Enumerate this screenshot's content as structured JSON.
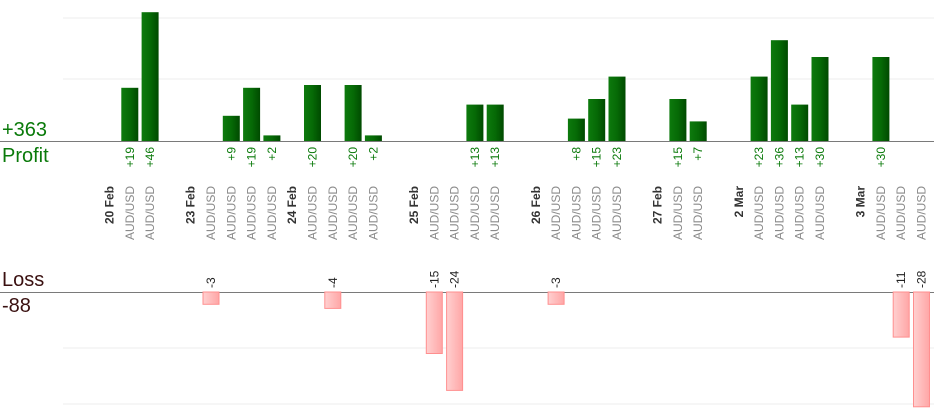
{
  "summary": {
    "profit_total": "+363",
    "profit_label": "Profit",
    "loss_label": "Loss",
    "loss_total": "-88"
  },
  "colors": {
    "profit_bar": "#006400",
    "profit_bar_light": "#108a10",
    "profit_text": "#0a7a0a",
    "loss_bar": "#ffb0b0",
    "loss_bar_edge": "#ff8f8f",
    "loss_label_text": "#3a1010",
    "pair_text": "#8a8a8a",
    "date_text": "#333333"
  },
  "chart_data": {
    "type": "bar",
    "title": "",
    "profit_axis": {
      "ylim": [
        0,
        46
      ],
      "grid": true
    },
    "loss_axis": {
      "ylim": [
        -28,
        0
      ],
      "grid": true
    },
    "columns": [
      {
        "kind": "date",
        "text": "20 Feb"
      },
      {
        "kind": "trade",
        "pair": "AUD/USD",
        "value": 19,
        "label": "+19"
      },
      {
        "kind": "trade",
        "pair": "AUD/USD",
        "value": 46,
        "label": "+46"
      },
      {
        "kind": "gap"
      },
      {
        "kind": "date",
        "text": "23 Feb"
      },
      {
        "kind": "trade",
        "pair": "AUD/USD",
        "value": -3,
        "label": "-3"
      },
      {
        "kind": "trade",
        "pair": "AUD/USD",
        "value": 9,
        "label": "+9"
      },
      {
        "kind": "trade",
        "pair": "AUD/USD",
        "value": 19,
        "label": "+19"
      },
      {
        "kind": "trade",
        "pair": "AUD/USD",
        "value": 2,
        "label": "+2"
      },
      {
        "kind": "date",
        "text": "24 Feb"
      },
      {
        "kind": "trade",
        "pair": "AUD/USD",
        "value": 20,
        "label": "+20"
      },
      {
        "kind": "trade",
        "pair": "AUD/USD",
        "value": -4,
        "label": "-4"
      },
      {
        "kind": "trade",
        "pair": "AUD/USD",
        "value": 20,
        "label": "+20"
      },
      {
        "kind": "trade",
        "pair": "AUD/USD",
        "value": 2,
        "label": "+2"
      },
      {
        "kind": "gap"
      },
      {
        "kind": "date",
        "text": "25 Feb"
      },
      {
        "kind": "trade",
        "pair": "AUD/USD",
        "value": -15,
        "label": "-15"
      },
      {
        "kind": "trade",
        "pair": "AUD/USD",
        "value": -24,
        "label": "-24"
      },
      {
        "kind": "trade",
        "pair": "AUD/USD",
        "value": 13,
        "label": "+13"
      },
      {
        "kind": "trade",
        "pair": "AUD/USD",
        "value": 13,
        "label": "+13"
      },
      {
        "kind": "gap"
      },
      {
        "kind": "date",
        "text": "26 Feb"
      },
      {
        "kind": "trade",
        "pair": "AUD/USD",
        "value": -3,
        "label": "-3"
      },
      {
        "kind": "trade",
        "pair": "AUD/USD",
        "value": 8,
        "label": "+8"
      },
      {
        "kind": "trade",
        "pair": "AUD/USD",
        "value": 15,
        "label": "+15"
      },
      {
        "kind": "trade",
        "pair": "AUD/USD",
        "value": 23,
        "label": "+23"
      },
      {
        "kind": "gap"
      },
      {
        "kind": "date",
        "text": "27 Feb"
      },
      {
        "kind": "trade",
        "pair": "AUD/USD",
        "value": 15,
        "label": "+15"
      },
      {
        "kind": "trade",
        "pair": "AUD/USD",
        "value": 7,
        "label": "+7"
      },
      {
        "kind": "gap"
      },
      {
        "kind": "date",
        "text": "2 Mar"
      },
      {
        "kind": "trade",
        "pair": "AUD/USD",
        "value": 23,
        "label": "+23"
      },
      {
        "kind": "trade",
        "pair": "AUD/USD",
        "value": 36,
        "label": "+36"
      },
      {
        "kind": "trade",
        "pair": "AUD/USD",
        "value": 13,
        "label": "+13"
      },
      {
        "kind": "trade",
        "pair": "AUD/USD",
        "value": 30,
        "label": "+30"
      },
      {
        "kind": "gap"
      },
      {
        "kind": "date",
        "text": "3 Mar"
      },
      {
        "kind": "trade",
        "pair": "AUD/USD",
        "value": 30,
        "label": "+30"
      },
      {
        "kind": "trade",
        "pair": "AUD/USD",
        "value": -11,
        "label": "-11"
      },
      {
        "kind": "trade",
        "pair": "AUD/USD",
        "value": -28,
        "label": "-28"
      }
    ]
  }
}
